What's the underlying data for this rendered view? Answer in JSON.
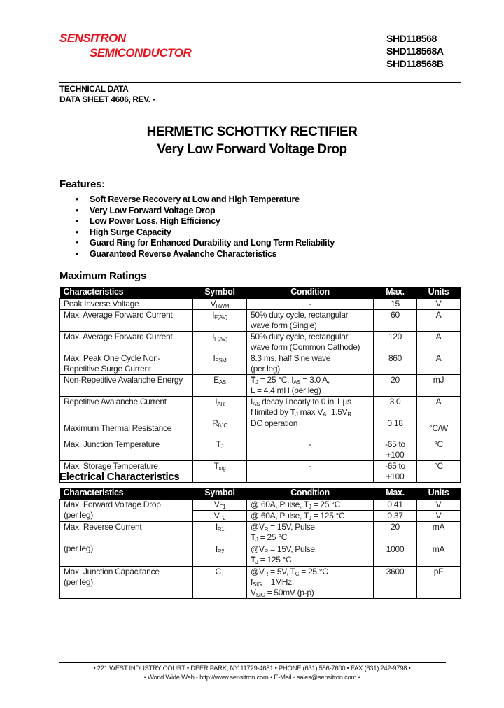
{
  "header": {
    "logo_line1": "SENSITRON",
    "logo_line2": "SEMICONDUCTOR",
    "brand_color": "#e8101a",
    "part_numbers": [
      "SHD118568",
      "SHD118568A",
      "SHD118568B"
    ],
    "doc_type": "TECHNICAL DATA",
    "doc_ref": "DATA SHEET 4606, REV. -"
  },
  "title": "HERMETIC SCHOTTKY RECTIFIER",
  "subtitle": "Very Low Forward Voltage Drop",
  "features": {
    "heading": "Features:",
    "items": [
      "Soft Reverse Recovery at Low and High Temperature",
      "Very Low Forward Voltage Drop",
      "Low Power Loss, High Efficiency",
      "High Surge Capacity",
      "Guard Ring for Enhanced Durability and Long Term Reliability",
      "Guaranteed Reverse Avalanche Characteristics"
    ]
  },
  "max_ratings": {
    "heading": "Maximum Ratings",
    "columns": [
      "Characteristics",
      "Symbol",
      "Condition",
      "Max.",
      "Units"
    ],
    "rows": [
      {
        "char": [
          "Peak Inverse Voltage"
        ],
        "sym": [
          {
            "t": "V"
          },
          {
            "s": "RWM"
          }
        ],
        "cond": [
          [
            {
              "t": "-"
            }
          ]
        ],
        "cond_center": true,
        "max": "15",
        "unit": "V"
      },
      {
        "char": [
          "Max. Average Forward Current"
        ],
        "sym": [
          {
            "t": "I"
          },
          {
            "s": "F(AV)"
          }
        ],
        "cond": [
          [
            {
              "t": "50% duty cycle, rectangular"
            }
          ],
          [
            {
              "t": "wave form (Single)"
            }
          ]
        ],
        "max": "60",
        "unit": "A"
      },
      {
        "char": [
          "Max. Average Forward Current"
        ],
        "sym": [
          {
            "t": "I"
          },
          {
            "s": "F(AV)"
          }
        ],
        "cond": [
          [
            {
              "t": "50% duty cycle, rectangular"
            }
          ],
          [
            {
              "t": "wave form (Common Cathode)"
            }
          ]
        ],
        "max": "120",
        "unit": "A"
      },
      {
        "char": [
          "Max. Peak One Cycle Non-",
          "Repetitive Surge Current"
        ],
        "sym": [
          {
            "t": "I"
          },
          {
            "s": "FSM"
          }
        ],
        "cond": [
          [
            {
              "t": "8.3 ms, half Sine wave"
            }
          ],
          [
            {
              "t": "(per leg)"
            }
          ]
        ],
        "max": "860",
        "unit": "A"
      },
      {
        "char": [
          "Non-Repetitive Avalanche Energy"
        ],
        "sym": [
          {
            "t": "E"
          },
          {
            "s": "AS"
          }
        ],
        "cond": [
          [
            {
              "b": "T"
            },
            {
              "s": "J"
            },
            {
              "t": " = 25 °C, I"
            },
            {
              "s": "AS"
            },
            {
              "t": " = 3.0 A,"
            }
          ],
          [
            {
              "t": "L = 4.4 mH (per leg)"
            }
          ]
        ],
        "max": "20",
        "unit": "mJ"
      },
      {
        "char": [
          "Repetitive Avalanche Current"
        ],
        "sym": [
          {
            "t": "I"
          },
          {
            "s": "AR"
          }
        ],
        "cond": [
          [
            {
              "t": "I"
            },
            {
              "s": "AS"
            },
            {
              "t": " decay linearly to 0 in 1 µs"
            }
          ],
          [
            {
              "t": "f limited by "
            },
            {
              "b": "T"
            },
            {
              "s": "J"
            },
            {
              "t": " max V"
            },
            {
              "s": "A"
            },
            {
              "t": "=1.5V"
            },
            {
              "s": "R"
            }
          ]
        ],
        "max": "3.0",
        "unit": "A"
      },
      {
        "char": [
          "Maximum Thermal Resistance"
        ],
        "char_middle": true,
        "sym": [
          {
            "t": "R"
          },
          {
            "s": "θJC"
          }
        ],
        "cond": [
          [
            {
              "t": "DC operation"
            }
          ]
        ],
        "max": "0.18",
        "unit": "°C/W"
      },
      {
        "char": [
          "Max. Junction Temperature"
        ],
        "sym": [
          {
            "t": "T"
          },
          {
            "s": "J"
          }
        ],
        "cond": [
          [
            {
              "t": "-"
            }
          ]
        ],
        "cond_center": true,
        "max": "-65 to +100",
        "unit": "°C"
      },
      {
        "char": [
          "Max. Storage Temperature"
        ],
        "sym": [
          {
            "t": "T"
          },
          {
            "s": "stg"
          }
        ],
        "cond": [
          [
            {
              "t": "-"
            }
          ]
        ],
        "cond_center": true,
        "max": "-65 to +100",
        "unit": "°C"
      }
    ]
  },
  "electrical": {
    "heading": "Electrical Characteristics",
    "columns": [
      "Characteristics",
      "Symbol",
      "Condition",
      "Max.",
      "Units"
    ],
    "groups": [
      {
        "char": [
          "Max. Forward Voltage Drop",
          "(per leg)"
        ],
        "split_char": true,
        "rows": [
          {
            "sym": [
              {
                "t": "V"
              },
              {
                "s": "F1"
              }
            ],
            "cond": [
              [
                {
                  "t": "@ 60A, Pulse, T"
                },
                {
                  "s": "J"
                },
                {
                  "t": " = 25 °C"
                }
              ]
            ],
            "max": "0.41",
            "unit": "V"
          },
          {
            "sym": [
              {
                "t": "V"
              },
              {
                "s": "F2"
              }
            ],
            "cond": [
              [
                {
                  "t": "@ 60A, Pulse, T"
                },
                {
                  "s": "J"
                },
                {
                  "t": " = 125 °C"
                }
              ]
            ],
            "max": "0.37",
            "unit": "V"
          }
        ]
      },
      {
        "char": [
          "Max. Reverse Current",
          "(per leg)"
        ],
        "split_char": true,
        "rows": [
          {
            "sym": [
              {
                "b": "I"
              },
              {
                "s": "R1"
              }
            ],
            "cond": [
              [
                {
                  "t": "@V"
                },
                {
                  "s": "R"
                },
                {
                  "t": " = 15V, Pulse,"
                }
              ],
              [
                {
                  "b": "T"
                },
                {
                  "s": "J"
                },
                {
                  "t": " = 25 °C"
                }
              ]
            ],
            "max": "20",
            "unit": "mA"
          },
          {
            "sym": [
              {
                "b": "I"
              },
              {
                "s": "R2"
              }
            ],
            "cond": [
              [
                {
                  "t": "@V"
                },
                {
                  "s": "R"
                },
                {
                  "t": " = 15V, Pulse,"
                }
              ],
              [
                {
                  "b": "T"
                },
                {
                  "s": "J"
                },
                {
                  "t": " = 125 °C"
                }
              ]
            ],
            "max": "1000",
            "unit": "mA"
          }
        ]
      },
      {
        "char": [
          "Max. Junction Capacitance",
          "(per leg)"
        ],
        "rows": [
          {
            "sym": [
              {
                "t": "C"
              },
              {
                "s": "T"
              }
            ],
            "cond": [
              [
                {
                  "t": "@V"
                },
                {
                  "s": "R"
                },
                {
                  "t": " = 5V, T"
                },
                {
                  "s": "C"
                },
                {
                  "t": " = 25 °C"
                }
              ],
              [
                {
                  "t": "f"
                },
                {
                  "s": "SIG"
                },
                {
                  "t": " = 1MHz,"
                }
              ],
              [
                {
                  "t": "V"
                },
                {
                  "s": "SIG"
                },
                {
                  "t": " = 50mV (p-p)"
                }
              ]
            ],
            "max": "3600",
            "unit": "pF"
          }
        ]
      }
    ]
  },
  "footer": {
    "line1": "• 221 WEST INDUSTRY COURT • DEER PARK, NY 11729-4681 • PHONE (631) 586-7600 • FAX (631) 242-9798 •",
    "line2": "• World Wide Web - http://www.sensitron.com • E-Mail - sales@sensitron.com •"
  }
}
